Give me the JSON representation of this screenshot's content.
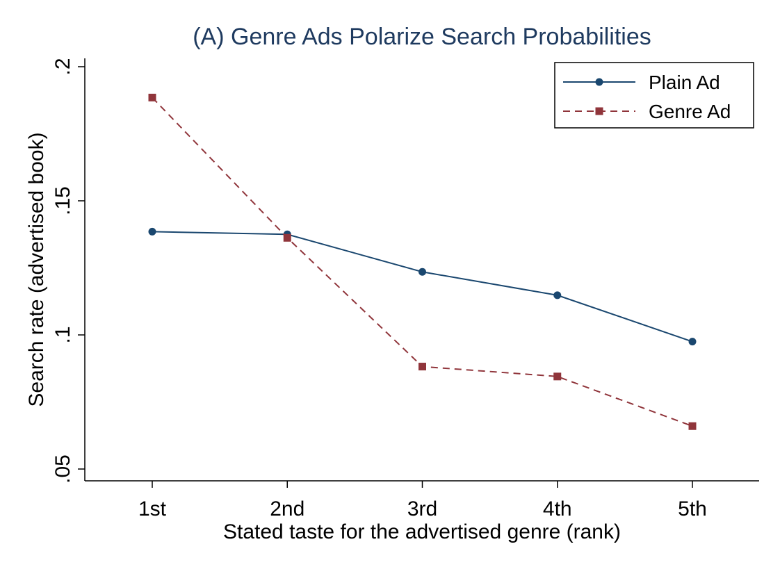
{
  "chart_data": {
    "type": "line",
    "title": "(A) Genre Ads Polarize Search Probabilities",
    "xlabel": "Stated taste for the advertised genre (rank)",
    "ylabel": "Search rate (advertised book)",
    "categories": [
      "1st",
      "2nd",
      "3rd",
      "4th",
      "5th"
    ],
    "ylim": [
      0.05,
      0.2
    ],
    "yticks": [
      0.05,
      0.1,
      0.15,
      0.2
    ],
    "ytick_labels": [
      ".05",
      ".1",
      ".15",
      ".2"
    ],
    "grid": false,
    "legend_position": "top-right",
    "series": [
      {
        "name": "Plain Ad",
        "values": [
          0.1385,
          0.1375,
          0.1235,
          0.1148,
          0.0975
        ],
        "color": "#1a476f",
        "marker": "circle",
        "dash": "solid"
      },
      {
        "name": "Genre Ad",
        "values": [
          0.1885,
          0.1362,
          0.0882,
          0.0845,
          0.066
        ],
        "color": "#90353b",
        "marker": "square",
        "dash": "dashed"
      }
    ]
  }
}
